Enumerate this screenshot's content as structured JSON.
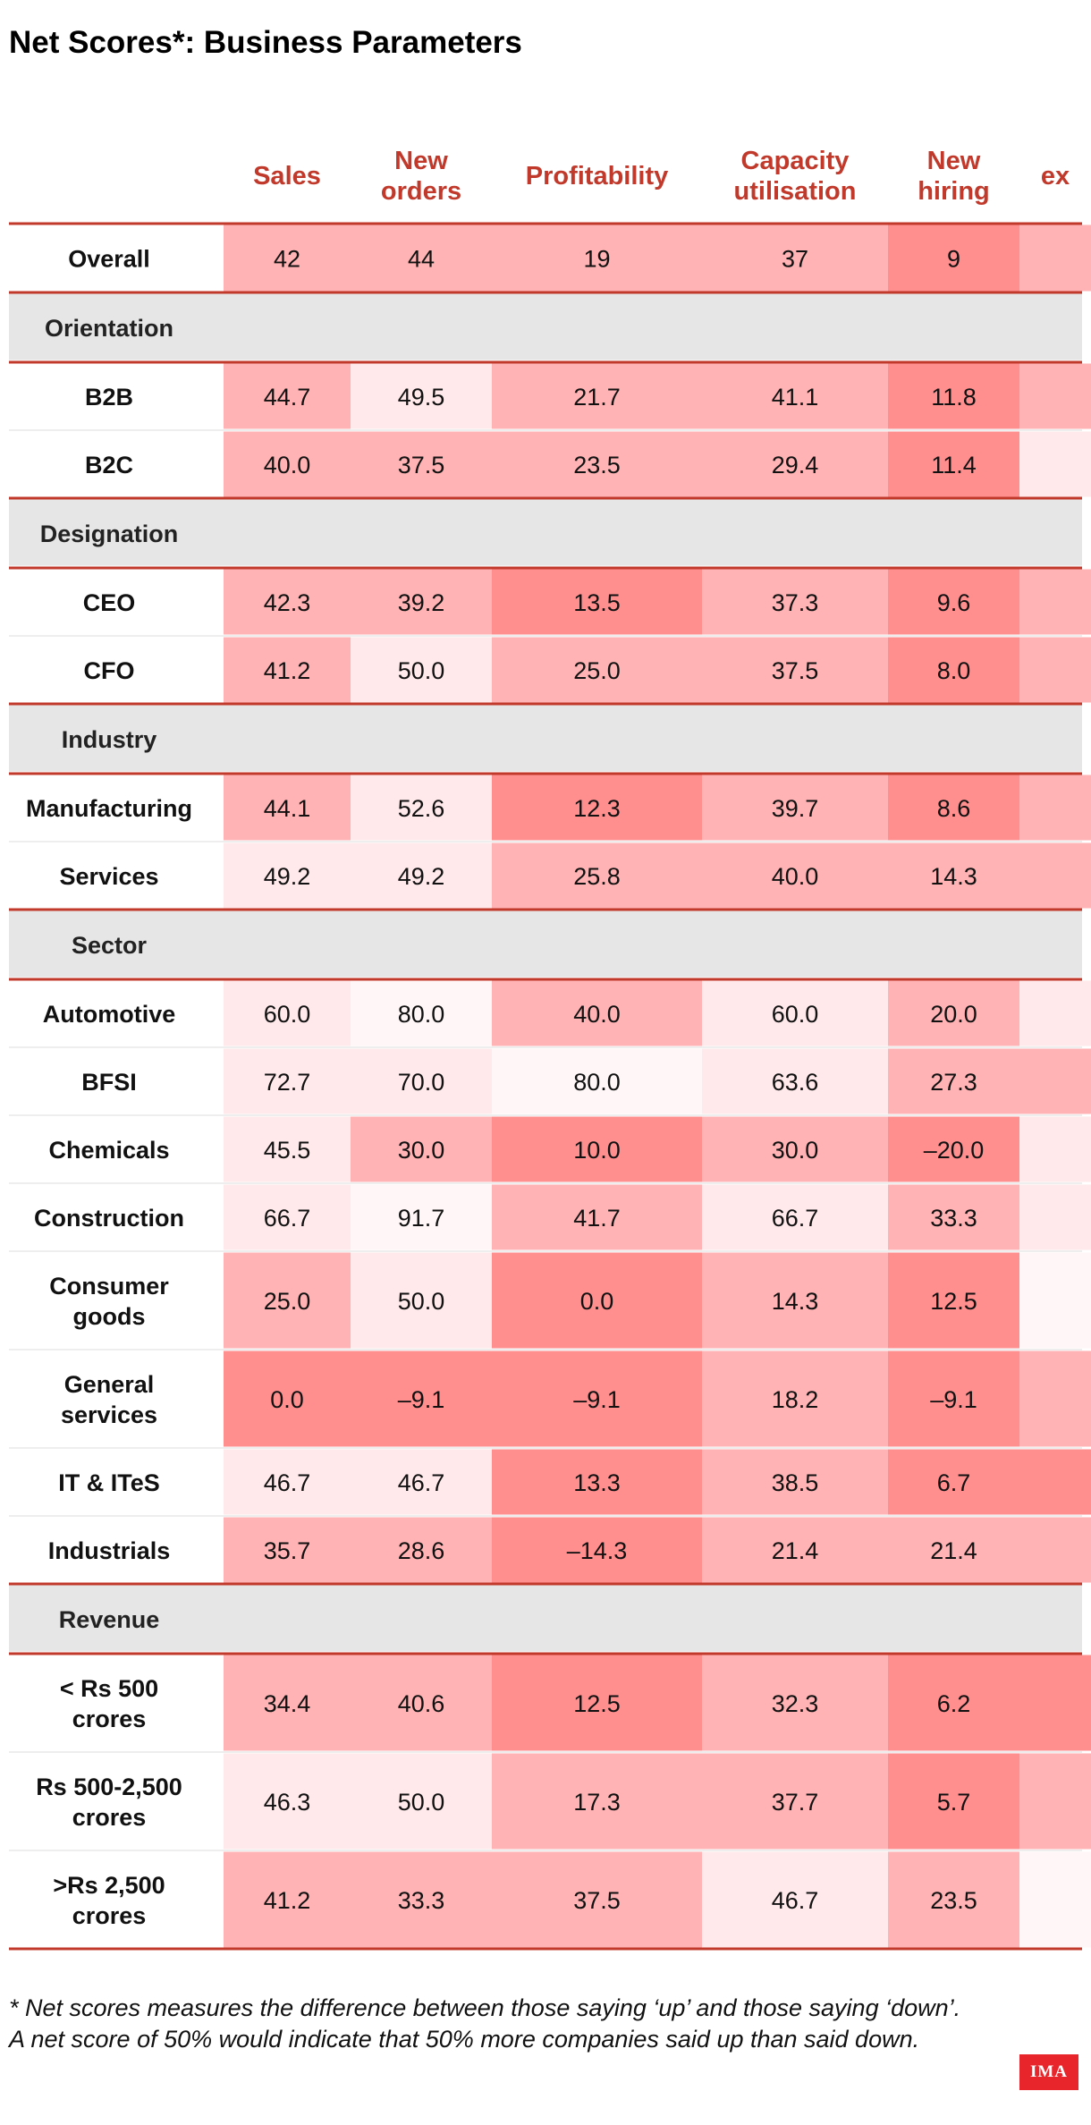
{
  "title": "Net Scores*: Business Parameters",
  "footnote": "* Net scores measures the difference between those saying ‘up’ and those saying ‘down’. A net score of 50% would indicate that 50% more companies said up than said down.",
  "logo_text": "IMA",
  "colors": {
    "header_text": "#c0392b",
    "divider": "#c0392b",
    "section_band": "#e6e6e6",
    "heat_scale": [
      "#fff7f7",
      "#ffe9ea",
      "#ffb3b4",
      "#ff8e8f"
    ]
  },
  "chart_data": {
    "type": "table",
    "title": "Net Scores*: Business Parameters",
    "columns": [
      [
        "Sales"
      ],
      [
        "New",
        "orders"
      ],
      [
        "Profitability"
      ],
      [
        "Capacity",
        "utilisation"
      ],
      [
        "New",
        "hiring"
      ],
      [
        "ex"
      ]
    ],
    "overall": {
      "label": [
        "Overall"
      ],
      "values": [
        "42",
        "44",
        "19",
        "37",
        "9",
        ""
      ]
    },
    "sections": [
      {
        "name": "Orientation",
        "rows": [
          {
            "label": [
              "B2B"
            ],
            "values": [
              "44.7",
              "49.5",
              "21.7",
              "41.1",
              "11.8",
              ""
            ]
          },
          {
            "label": [
              "B2C"
            ],
            "values": [
              "40.0",
              "37.5",
              "23.5",
              "29.4",
              "11.4",
              ""
            ]
          }
        ]
      },
      {
        "name": "Designation",
        "rows": [
          {
            "label": [
              "CEO"
            ],
            "values": [
              "42.3",
              "39.2",
              "13.5",
              "37.3",
              "9.6",
              ""
            ]
          },
          {
            "label": [
              "CFO"
            ],
            "values": [
              "41.2",
              "50.0",
              "25.0",
              "37.5",
              "8.0",
              ""
            ]
          }
        ]
      },
      {
        "name": "Industry",
        "rows": [
          {
            "label": [
              "Manufacturing"
            ],
            "values": [
              "44.1",
              "52.6",
              "12.3",
              "39.7",
              "8.6",
              ""
            ]
          },
          {
            "label": [
              "Services"
            ],
            "values": [
              "49.2",
              "49.2",
              "25.8",
              "40.0",
              "14.3",
              ""
            ]
          }
        ]
      },
      {
        "name": "Sector",
        "rows": [
          {
            "label": [
              "Automotive"
            ],
            "values": [
              "60.0",
              "80.0",
              "40.0",
              "60.0",
              "20.0",
              ""
            ]
          },
          {
            "label": [
              "BFSI"
            ],
            "values": [
              "72.7",
              "70.0",
              "80.0",
              "63.6",
              "27.3",
              ""
            ]
          },
          {
            "label": [
              "Chemicals"
            ],
            "values": [
              "45.5",
              "30.0",
              "10.0",
              "30.0",
              "–20.0",
              ""
            ]
          },
          {
            "label": [
              "Construction"
            ],
            "values": [
              "66.7",
              "91.7",
              "41.7",
              "66.7",
              "33.3",
              ""
            ]
          },
          {
            "label": [
              "Consumer",
              "goods"
            ],
            "values": [
              "25.0",
              "50.0",
              "0.0",
              "14.3",
              "12.5",
              ""
            ]
          },
          {
            "label": [
              "General",
              "services"
            ],
            "values": [
              "0.0",
              "–9.1",
              "–9.1",
              "18.2",
              "–9.1",
              ""
            ]
          },
          {
            "label": [
              "IT & ITeS"
            ],
            "values": [
              "46.7",
              "46.7",
              "13.3",
              "38.5",
              "6.7",
              ""
            ]
          },
          {
            "label": [
              "Industrials"
            ],
            "values": [
              "35.7",
              "28.6",
              "–14.3",
              "21.4",
              "21.4",
              ""
            ]
          }
        ]
      },
      {
        "name": "Revenue",
        "rows": [
          {
            "label": [
              "< Rs 500",
              "crores"
            ],
            "values": [
              "34.4",
              "40.6",
              "12.5",
              "32.3",
              "6.2",
              ""
            ]
          },
          {
            "label": [
              "Rs 500-2,500",
              "crores"
            ],
            "values": [
              "46.3",
              "50.0",
              "17.3",
              "37.7",
              "5.7",
              ""
            ]
          },
          {
            "label": [
              ">Rs 2,500",
              "crores"
            ],
            "values": [
              "41.2",
              "33.3",
              "37.5",
              "46.7",
              "23.5",
              ""
            ]
          }
        ]
      }
    ],
    "shade_levels": {
      "overall": [
        2,
        2,
        2,
        2,
        3,
        2
      ],
      "B2B": [
        2,
        1,
        2,
        2,
        3,
        2
      ],
      "B2C": [
        2,
        2,
        2,
        2,
        3,
        1
      ],
      "CEO": [
        2,
        2,
        3,
        2,
        3,
        2
      ],
      "CFO": [
        2,
        1,
        2,
        2,
        3,
        2
      ],
      "Manufacturing": [
        2,
        1,
        3,
        2,
        3,
        2
      ],
      "Services": [
        1,
        1,
        2,
        2,
        2,
        2
      ],
      "Automotive": [
        1,
        0,
        2,
        1,
        2,
        1
      ],
      "BFSI": [
        1,
        1,
        0,
        1,
        2,
        2
      ],
      "Chemicals": [
        1,
        2,
        3,
        2,
        3,
        1
      ],
      "Construction": [
        1,
        0,
        2,
        1,
        2,
        1
      ],
      "Consumer goods": [
        2,
        1,
        3,
        2,
        3,
        0
      ],
      "General services": [
        3,
        3,
        3,
        2,
        3,
        2
      ],
      "IT & ITeS": [
        1,
        1,
        3,
        2,
        3,
        3
      ],
      "Industrials": [
        2,
        2,
        3,
        2,
        2,
        2
      ],
      "< Rs 500 crores": [
        2,
        2,
        3,
        2,
        3,
        3
      ],
      "Rs 500-2,500 crores": [
        1,
        1,
        2,
        2,
        3,
        2
      ],
      ">Rs 2,500 crores": [
        2,
        2,
        2,
        1,
        2,
        0
      ]
    }
  }
}
